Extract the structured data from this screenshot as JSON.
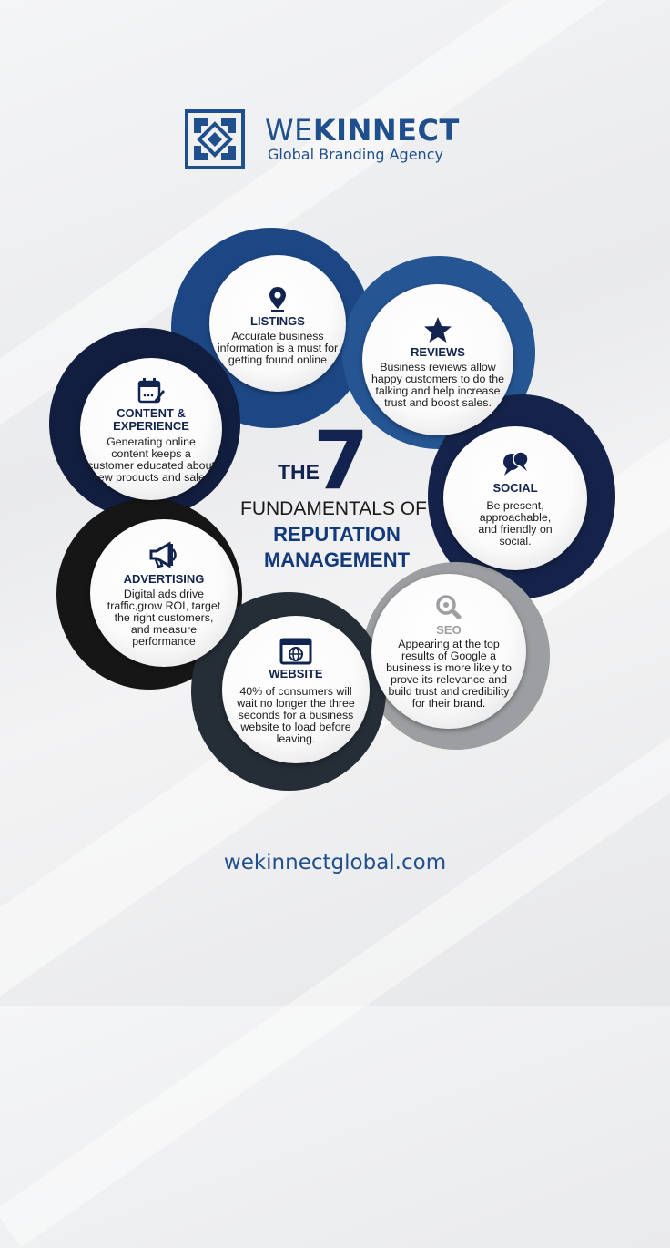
{
  "brand": {
    "name_light": "WE",
    "name_bold": "KINNECT",
    "tagline": "Global Branding Agency"
  },
  "center": {
    "the": "THE",
    "number": "7",
    "fundamentals": "FUNDAMENTALS OF",
    "reputation": "REPUTATION",
    "management": "MANAGEMENT"
  },
  "items": [
    {
      "title": "LISTINGS",
      "icon": "location-pin-icon",
      "text": "Accurate business information is a must for getting found online"
    },
    {
      "title": "REVIEWS",
      "icon": "star-icon",
      "text": "Business reviews allow happy customers to do the talking and help increase trust and boost sales."
    },
    {
      "title": "SOCIAL",
      "icon": "chat-bubbles-icon",
      "text": "Be present, approachable, and friendly on social."
    },
    {
      "title": "SEO",
      "icon": "magnifier-icon",
      "text": "Appearing at the top results of Google a business  is more likely to prove its relevance and build trust and credibility for their brand."
    },
    {
      "title": "WEBSITE",
      "icon": "browser-globe-icon",
      "text": "40% of consumers will wait no longer the three seconds for a business website to load before leaving."
    },
    {
      "title": "ADVERTISING",
      "icon": "megaphone-icon",
      "text": "Digital ads drive traffic,grow ROI, target the right customers, and measure performance"
    },
    {
      "title": "CONTENT & EXPERIENCE",
      "icon": "calendar-edit-icon",
      "text": "Generating online content keeps a customer educated about new products and sales"
    }
  ],
  "footer": {
    "url": "wekinnectglobal.com"
  },
  "colors": {
    "navy": "#12234f",
    "brand_blue": "#1f4f8c",
    "ring_listings": "#1d4784",
    "ring_reviews": "#265594",
    "ring_social": "#15234a",
    "ring_seo": "#9c9ea1",
    "ring_website": "#252d36",
    "ring_advertising": "#161616",
    "ring_content": "#121e3f"
  }
}
